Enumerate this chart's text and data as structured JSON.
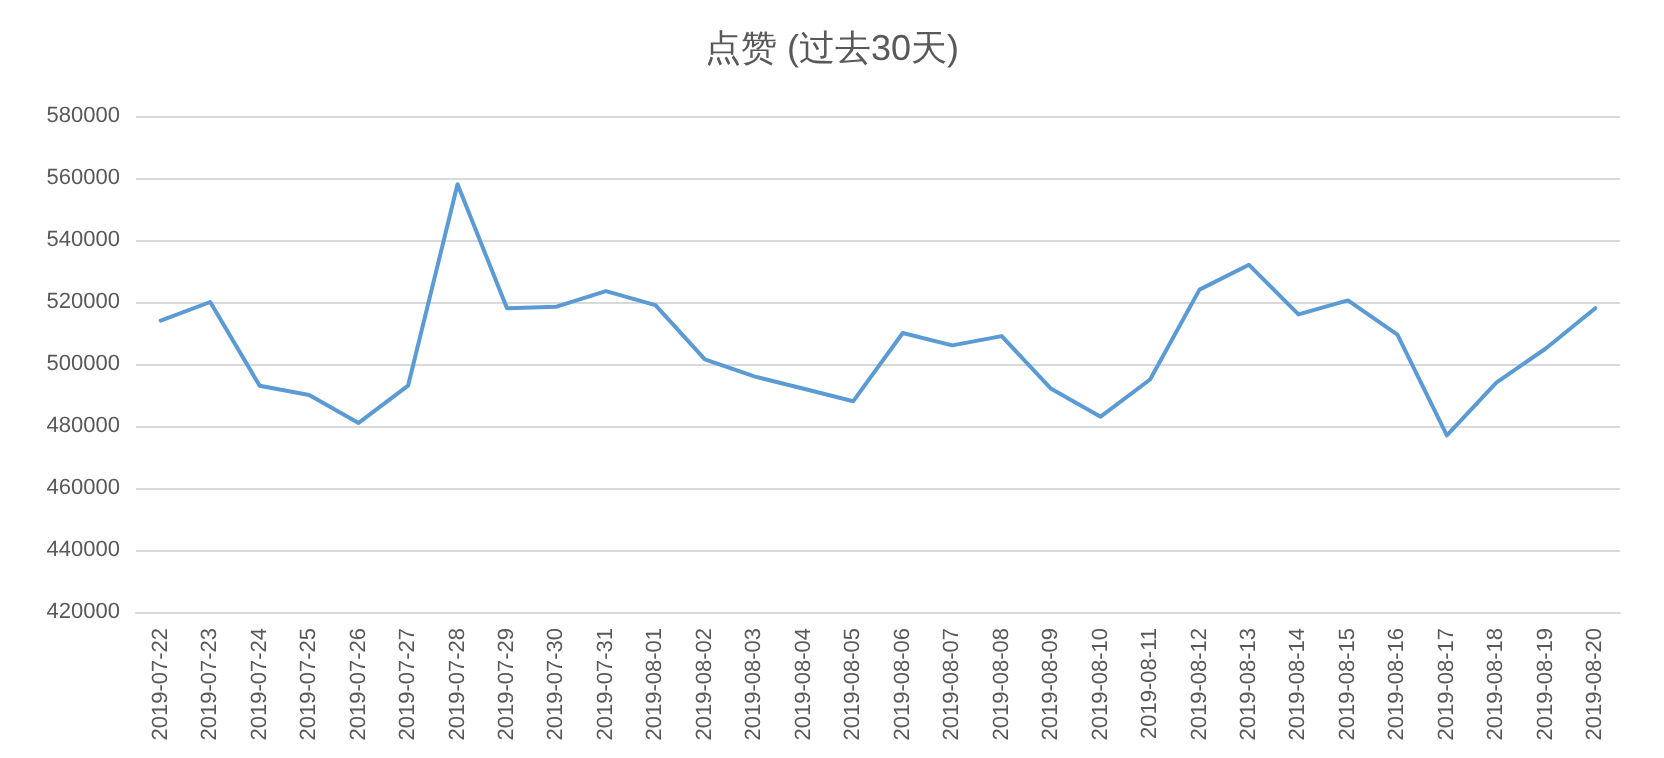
{
  "chart_data": {
    "type": "line",
    "title": "点赞 (过去30天)",
    "categories": [
      "2019-07-22",
      "2019-07-23",
      "2019-07-24",
      "2019-07-25",
      "2019-07-26",
      "2019-07-27",
      "2019-07-28",
      "2019-07-29",
      "2019-07-30",
      "2019-07-31",
      "2019-08-01",
      "2019-08-02",
      "2019-08-03",
      "2019-08-04",
      "2019-08-05",
      "2019-08-06",
      "2019-08-07",
      "2019-08-08",
      "2019-08-09",
      "2019-08-10",
      "2019-08-11",
      "2019-08-12",
      "2019-08-13",
      "2019-08-14",
      "2019-08-15",
      "2019-08-16",
      "2019-08-17",
      "2019-08-18",
      "2019-08-19",
      "2019-08-20"
    ],
    "series": [
      {
        "color": "#5b9bd5",
        "values": [
          514000,
          520000,
          493000,
          490000,
          481000,
          493000,
          558000,
          518000,
          518500,
          523500,
          519000,
          501500,
          496000,
          492000,
          488000,
          510000,
          506000,
          509000,
          492000,
          483000,
          495000,
          524000,
          532000,
          516000,
          520500,
          509500,
          477000,
          494000,
          505000,
          518000
        ]
      }
    ],
    "ylim": [
      420000,
      580000
    ],
    "yticks": [
      420000,
      440000,
      460000,
      480000,
      500000,
      520000,
      540000,
      560000,
      580000
    ],
    "grid": "y",
    "marker": "none",
    "line_style": "solid"
  }
}
